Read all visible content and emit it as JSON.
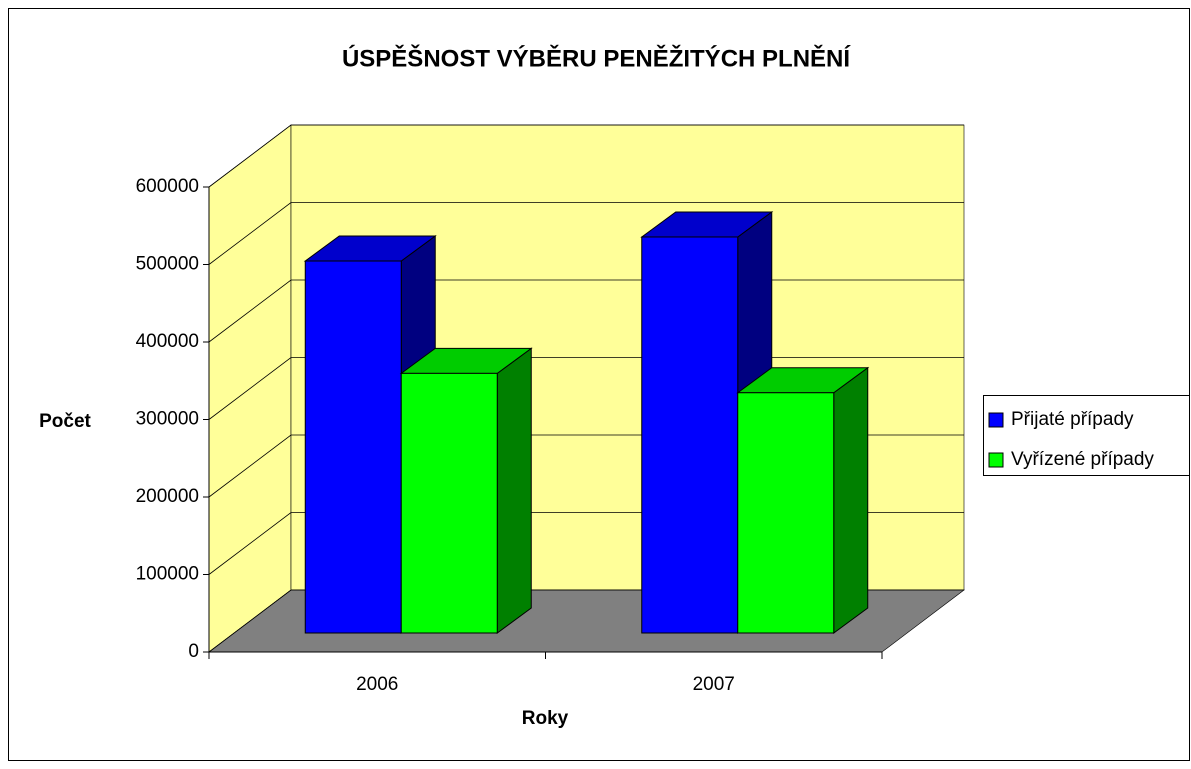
{
  "chart_data": {
    "type": "bar3d",
    "title": "ÚSPĚŠNOST VÝBĚRU PENĚŽITÝCH PLNĚNÍ",
    "x_label": "Roky",
    "y_label": "Počet",
    "categories": [
      "2006",
      "2007"
    ],
    "series": [
      {
        "name": "Přijaté případy",
        "color": "#0000ff",
        "values": [
          480000,
          511000
        ]
      },
      {
        "name": "Vyřízené případy",
        "color": "#00ff00",
        "values": [
          335000,
          310000
        ]
      }
    ],
    "ylim": [
      0,
      600000
    ],
    "yticks": [
      0,
      100000,
      200000,
      300000,
      400000,
      500000,
      600000
    ],
    "grid": true,
    "legend": "right"
  }
}
